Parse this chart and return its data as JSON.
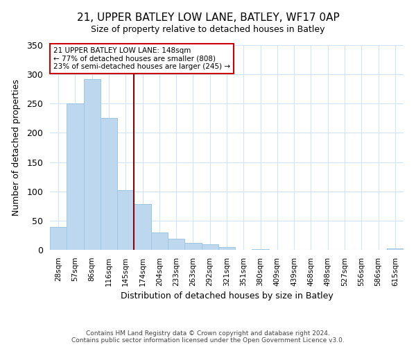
{
  "title": "21, UPPER BATLEY LOW LANE, BATLEY, WF17 0AP",
  "subtitle": "Size of property relative to detached houses in Batley",
  "xlabel": "Distribution of detached houses by size in Batley",
  "ylabel": "Number of detached properties",
  "bar_color": "#bdd7ee",
  "bar_edge_color": "#9ec6e0",
  "bins": [
    "28sqm",
    "57sqm",
    "86sqm",
    "116sqm",
    "145sqm",
    "174sqm",
    "204sqm",
    "233sqm",
    "263sqm",
    "292sqm",
    "321sqm",
    "351sqm",
    "380sqm",
    "409sqm",
    "439sqm",
    "468sqm",
    "498sqm",
    "527sqm",
    "556sqm",
    "586sqm",
    "615sqm"
  ],
  "values": [
    39,
    250,
    292,
    226,
    102,
    78,
    30,
    19,
    12,
    10,
    5,
    0,
    1,
    0,
    0,
    0,
    0,
    0,
    0,
    0,
    2
  ],
  "ylim": [
    0,
    350
  ],
  "yticks": [
    0,
    50,
    100,
    150,
    200,
    250,
    300,
    350
  ],
  "property_line_x": 4.5,
  "property_line_color": "#8b0000",
  "annotation_title": "21 UPPER BATLEY LOW LANE: 148sqm",
  "annotation_line1": "← 77% of detached houses are smaller (808)",
  "annotation_line2": "23% of semi-detached houses are larger (245) →",
  "annotation_box_color": "#ffffff",
  "annotation_box_edge": "#cc0000",
  "footer_line1": "Contains HM Land Registry data © Crown copyright and database right 2024.",
  "footer_line2": "Contains public sector information licensed under the Open Government Licence v3.0.",
  "grid_color": "#d0e4f5",
  "background_color": "#ffffff"
}
